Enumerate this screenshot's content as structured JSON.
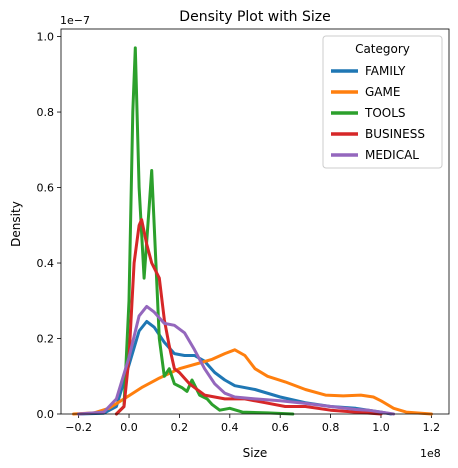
{
  "chart_data": {
    "type": "line",
    "title": "Density Plot with Size",
    "xlabel": "Size",
    "ylabel": "Density",
    "x_scale_label": "1e8",
    "y_scale_label": "1e−7",
    "x_multiplier": 100000000,
    "y_multiplier": 1e-07,
    "xlim": [
      -0.27,
      1.27
    ],
    "ylim": [
      0,
      1.02
    ],
    "xticks": [
      -0.2,
      0.0,
      0.2,
      0.4,
      0.6,
      0.8,
      1.0,
      1.2
    ],
    "xtick_labels": [
      "−0.2",
      "0.0",
      "0.2",
      "0.4",
      "0.6",
      "0.8",
      "1.0",
      "1.2"
    ],
    "yticks": [
      0.0,
      0.2,
      0.4,
      0.6,
      0.8,
      1.0
    ],
    "ytick_labels": [
      "0.0",
      "0.2",
      "0.4",
      "0.6",
      "0.8",
      "1.0"
    ],
    "grid": false,
    "legend": {
      "title": "Category",
      "position": "top-right"
    },
    "series": [
      {
        "name": "FAMILY",
        "color": "#1f77b4",
        "points": [
          [
            -0.2,
            0.0
          ],
          [
            -0.1,
            0.002
          ],
          [
            -0.05,
            0.02
          ],
          [
            0.0,
            0.13
          ],
          [
            0.04,
            0.22
          ],
          [
            0.07,
            0.245
          ],
          [
            0.1,
            0.23
          ],
          [
            0.14,
            0.19
          ],
          [
            0.18,
            0.16
          ],
          [
            0.22,
            0.155
          ],
          [
            0.26,
            0.155
          ],
          [
            0.3,
            0.14
          ],
          [
            0.34,
            0.11
          ],
          [
            0.38,
            0.09
          ],
          [
            0.42,
            0.075
          ],
          [
            0.5,
            0.065
          ],
          [
            0.6,
            0.045
          ],
          [
            0.7,
            0.03
          ],
          [
            0.8,
            0.02
          ],
          [
            0.9,
            0.015
          ],
          [
            1.0,
            0.005
          ],
          [
            1.04,
            0.0
          ]
        ]
      },
      {
        "name": "GAME",
        "color": "#ff7f0e",
        "points": [
          [
            -0.22,
            0.0
          ],
          [
            -0.14,
            0.003
          ],
          [
            -0.08,
            0.015
          ],
          [
            -0.02,
            0.04
          ],
          [
            0.05,
            0.07
          ],
          [
            0.12,
            0.095
          ],
          [
            0.2,
            0.12
          ],
          [
            0.28,
            0.135
          ],
          [
            0.33,
            0.145
          ],
          [
            0.38,
            0.16
          ],
          [
            0.42,
            0.17
          ],
          [
            0.46,
            0.155
          ],
          [
            0.5,
            0.12
          ],
          [
            0.55,
            0.1
          ],
          [
            0.62,
            0.085
          ],
          [
            0.7,
            0.065
          ],
          [
            0.78,
            0.05
          ],
          [
            0.85,
            0.048
          ],
          [
            0.92,
            0.05
          ],
          [
            0.97,
            0.045
          ],
          [
            1.0,
            0.035
          ],
          [
            1.05,
            0.015
          ],
          [
            1.1,
            0.005
          ],
          [
            1.2,
            0.0
          ]
        ]
      },
      {
        "name": "TOOLS",
        "color": "#2ca02c",
        "points": [
          [
            -0.05,
            0.0
          ],
          [
            -0.02,
            0.02
          ],
          [
            0.0,
            0.3
          ],
          [
            0.015,
            0.8
          ],
          [
            0.025,
            0.97
          ],
          [
            0.04,
            0.6
          ],
          [
            0.06,
            0.36
          ],
          [
            0.08,
            0.55
          ],
          [
            0.09,
            0.645
          ],
          [
            0.1,
            0.5
          ],
          [
            0.12,
            0.2
          ],
          [
            0.14,
            0.1
          ],
          [
            0.16,
            0.12
          ],
          [
            0.18,
            0.08
          ],
          [
            0.21,
            0.07
          ],
          [
            0.23,
            0.06
          ],
          [
            0.25,
            0.09
          ],
          [
            0.28,
            0.05
          ],
          [
            0.31,
            0.04
          ],
          [
            0.33,
            0.025
          ],
          [
            0.36,
            0.01
          ],
          [
            0.4,
            0.015
          ],
          [
            0.45,
            0.005
          ],
          [
            0.55,
            0.003
          ],
          [
            0.65,
            0.0
          ]
        ]
      },
      {
        "name": "BUSINESS",
        "color": "#d62728",
        "points": [
          [
            -0.05,
            0.0
          ],
          [
            -0.02,
            0.02
          ],
          [
            0.0,
            0.15
          ],
          [
            0.02,
            0.4
          ],
          [
            0.04,
            0.5
          ],
          [
            0.05,
            0.515
          ],
          [
            0.07,
            0.45
          ],
          [
            0.09,
            0.4
          ],
          [
            0.12,
            0.36
          ],
          [
            0.14,
            0.25
          ],
          [
            0.16,
            0.18
          ],
          [
            0.18,
            0.12
          ],
          [
            0.2,
            0.11
          ],
          [
            0.24,
            0.08
          ],
          [
            0.3,
            0.05
          ],
          [
            0.38,
            0.04
          ],
          [
            0.46,
            0.04
          ],
          [
            0.54,
            0.03
          ],
          [
            0.62,
            0.02
          ],
          [
            0.7,
            0.02
          ],
          [
            0.8,
            0.01
          ],
          [
            0.9,
            0.005
          ],
          [
            1.0,
            0.0
          ]
        ]
      },
      {
        "name": "MEDICAL",
        "color": "#9467bd",
        "points": [
          [
            -0.2,
            0.0
          ],
          [
            -0.1,
            0.005
          ],
          [
            -0.05,
            0.04
          ],
          [
            0.0,
            0.15
          ],
          [
            0.04,
            0.26
          ],
          [
            0.07,
            0.285
          ],
          [
            0.1,
            0.27
          ],
          [
            0.14,
            0.24
          ],
          [
            0.18,
            0.235
          ],
          [
            0.22,
            0.215
          ],
          [
            0.26,
            0.17
          ],
          [
            0.3,
            0.12
          ],
          [
            0.34,
            0.08
          ],
          [
            0.38,
            0.055
          ],
          [
            0.42,
            0.045
          ],
          [
            0.5,
            0.04
          ],
          [
            0.6,
            0.035
          ],
          [
            0.7,
            0.028
          ],
          [
            0.8,
            0.02
          ],
          [
            0.9,
            0.012
          ],
          [
            0.95,
            0.01
          ],
          [
            1.0,
            0.005
          ],
          [
            1.05,
            0.0
          ]
        ]
      }
    ]
  }
}
